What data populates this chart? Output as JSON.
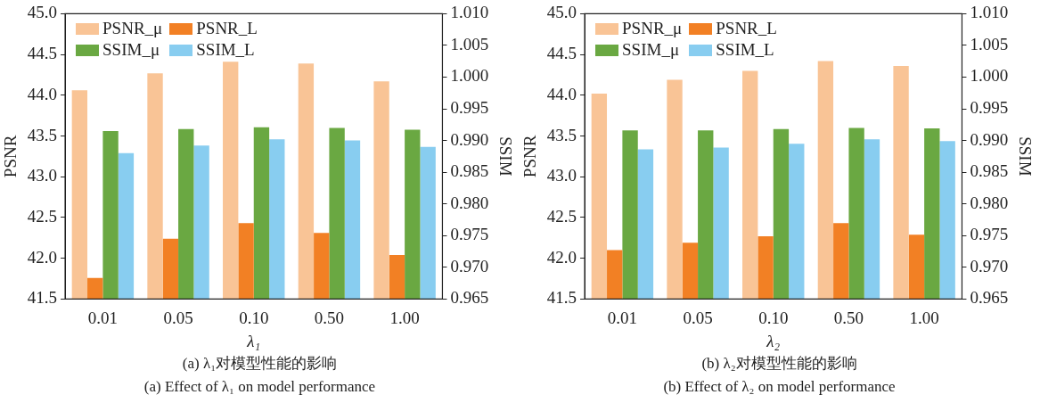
{
  "chart_data": [
    {
      "type": "bar",
      "title": "(a) λ₁对模型性能的影响",
      "subtitle": "(a) Effect of λ₁ on model performance",
      "xlabel": "λ₁",
      "ylabel": "PSNR",
      "y2label": "SSIM",
      "categories": [
        "0.01",
        "0.05",
        "0.10",
        "0.50",
        "1.00"
      ],
      "series": [
        {
          "name": "PSNR_μ",
          "color": "#f9c496",
          "values": [
            44.06,
            44.27,
            44.41,
            44.39,
            44.17
          ]
        },
        {
          "name": "PSNR_L",
          "color": "#f28024",
          "values": [
            41.76,
            42.24,
            42.43,
            42.31,
            42.04
          ]
        },
        {
          "name": "SSIM_μ",
          "color": "#6aa842",
          "axis": "y2",
          "values": [
            0.9915,
            0.9918,
            0.9921,
            0.992,
            0.9917
          ]
        },
        {
          "name": "SSIM_L",
          "color": "#88cdf0",
          "axis": "y2",
          "values": [
            0.988,
            0.9892,
            0.9902,
            0.99,
            0.989
          ]
        }
      ],
      "ylim": [
        41.5,
        45.0
      ],
      "yticks": [
        {
          "value": 41.5,
          "label": "41.5"
        },
        {
          "value": 42,
          "label": "42.0"
        },
        {
          "value": 42.5,
          "label": "42.5"
        },
        {
          "value": 43,
          "label": "43.0"
        },
        {
          "value": 43.5,
          "label": "43.5"
        },
        {
          "value": 44,
          "label": "44.0"
        },
        {
          "value": 44.5,
          "label": "44.5"
        },
        {
          "value": 45,
          "label": "45.0"
        }
      ],
      "y2lim": [
        0.965,
        1.01
      ],
      "y2ticks": [
        {
          "value": 0.965,
          "label": "0.965"
        },
        {
          "value": 0.97,
          "label": "0.970"
        },
        {
          "value": 0.975,
          "label": "0.975"
        },
        {
          "value": 0.98,
          "label": "0.980"
        },
        {
          "value": 0.985,
          "label": "0.985"
        },
        {
          "value": 0.99,
          "label": "0.990"
        },
        {
          "value": 0.995,
          "label": "0.995"
        },
        {
          "value": 1.0,
          "label": "1.000"
        },
        {
          "value": 1.005,
          "label": "1.005"
        },
        {
          "value": 1.01,
          "label": "1.010"
        }
      ],
      "legend": "top left"
    },
    {
      "type": "bar",
      "title": "(b) λ₂对模型性能的影响",
      "subtitle": "(b) Effect of λ₂ on model performance",
      "xlabel": "λ₂",
      "ylabel": "PSNR",
      "y2label": "SSIM",
      "categories": [
        "0.01",
        "0.05",
        "0.10",
        "0.50",
        "1.00"
      ],
      "series": [
        {
          "name": "PSNR_μ",
          "color": "#f9c496",
          "values": [
            44.02,
            44.19,
            44.3,
            44.42,
            44.36
          ]
        },
        {
          "name": "PSNR_L",
          "color": "#f28024",
          "values": [
            42.1,
            42.19,
            42.27,
            42.43,
            42.29
          ]
        },
        {
          "name": "SSIM_μ",
          "color": "#6aa842",
          "axis": "y2",
          "values": [
            0.9916,
            0.9916,
            0.9918,
            0.992,
            0.9919
          ]
        },
        {
          "name": "SSIM_L",
          "color": "#88cdf0",
          "axis": "y2",
          "values": [
            0.9886,
            0.9889,
            0.9895,
            0.9902,
            0.9899
          ]
        }
      ],
      "ylim": [
        41.5,
        45.0
      ],
      "yticks": [
        {
          "value": 41.5,
          "label": "41.5"
        },
        {
          "value": 42,
          "label": "42.0"
        },
        {
          "value": 42.5,
          "label": "42.5"
        },
        {
          "value": 43,
          "label": "43.0"
        },
        {
          "value": 43.5,
          "label": "43.5"
        },
        {
          "value": 44,
          "label": "44.0"
        },
        {
          "value": 44.5,
          "label": "44.5"
        },
        {
          "value": 45,
          "label": "45.0"
        }
      ],
      "y2lim": [
        0.965,
        1.01
      ],
      "y2ticks": [
        {
          "value": 0.965,
          "label": "0.965"
        },
        {
          "value": 0.97,
          "label": "0.970"
        },
        {
          "value": 0.975,
          "label": "0.975"
        },
        {
          "value": 0.98,
          "label": "0.980"
        },
        {
          "value": 0.985,
          "label": "0.985"
        },
        {
          "value": 0.99,
          "label": "0.990"
        },
        {
          "value": 0.995,
          "label": "0.995"
        },
        {
          "value": 1.0,
          "label": "1.000"
        },
        {
          "value": 1.005,
          "label": "1.005"
        },
        {
          "value": 1.01,
          "label": "1.010"
        }
      ],
      "legend": "top left"
    }
  ]
}
